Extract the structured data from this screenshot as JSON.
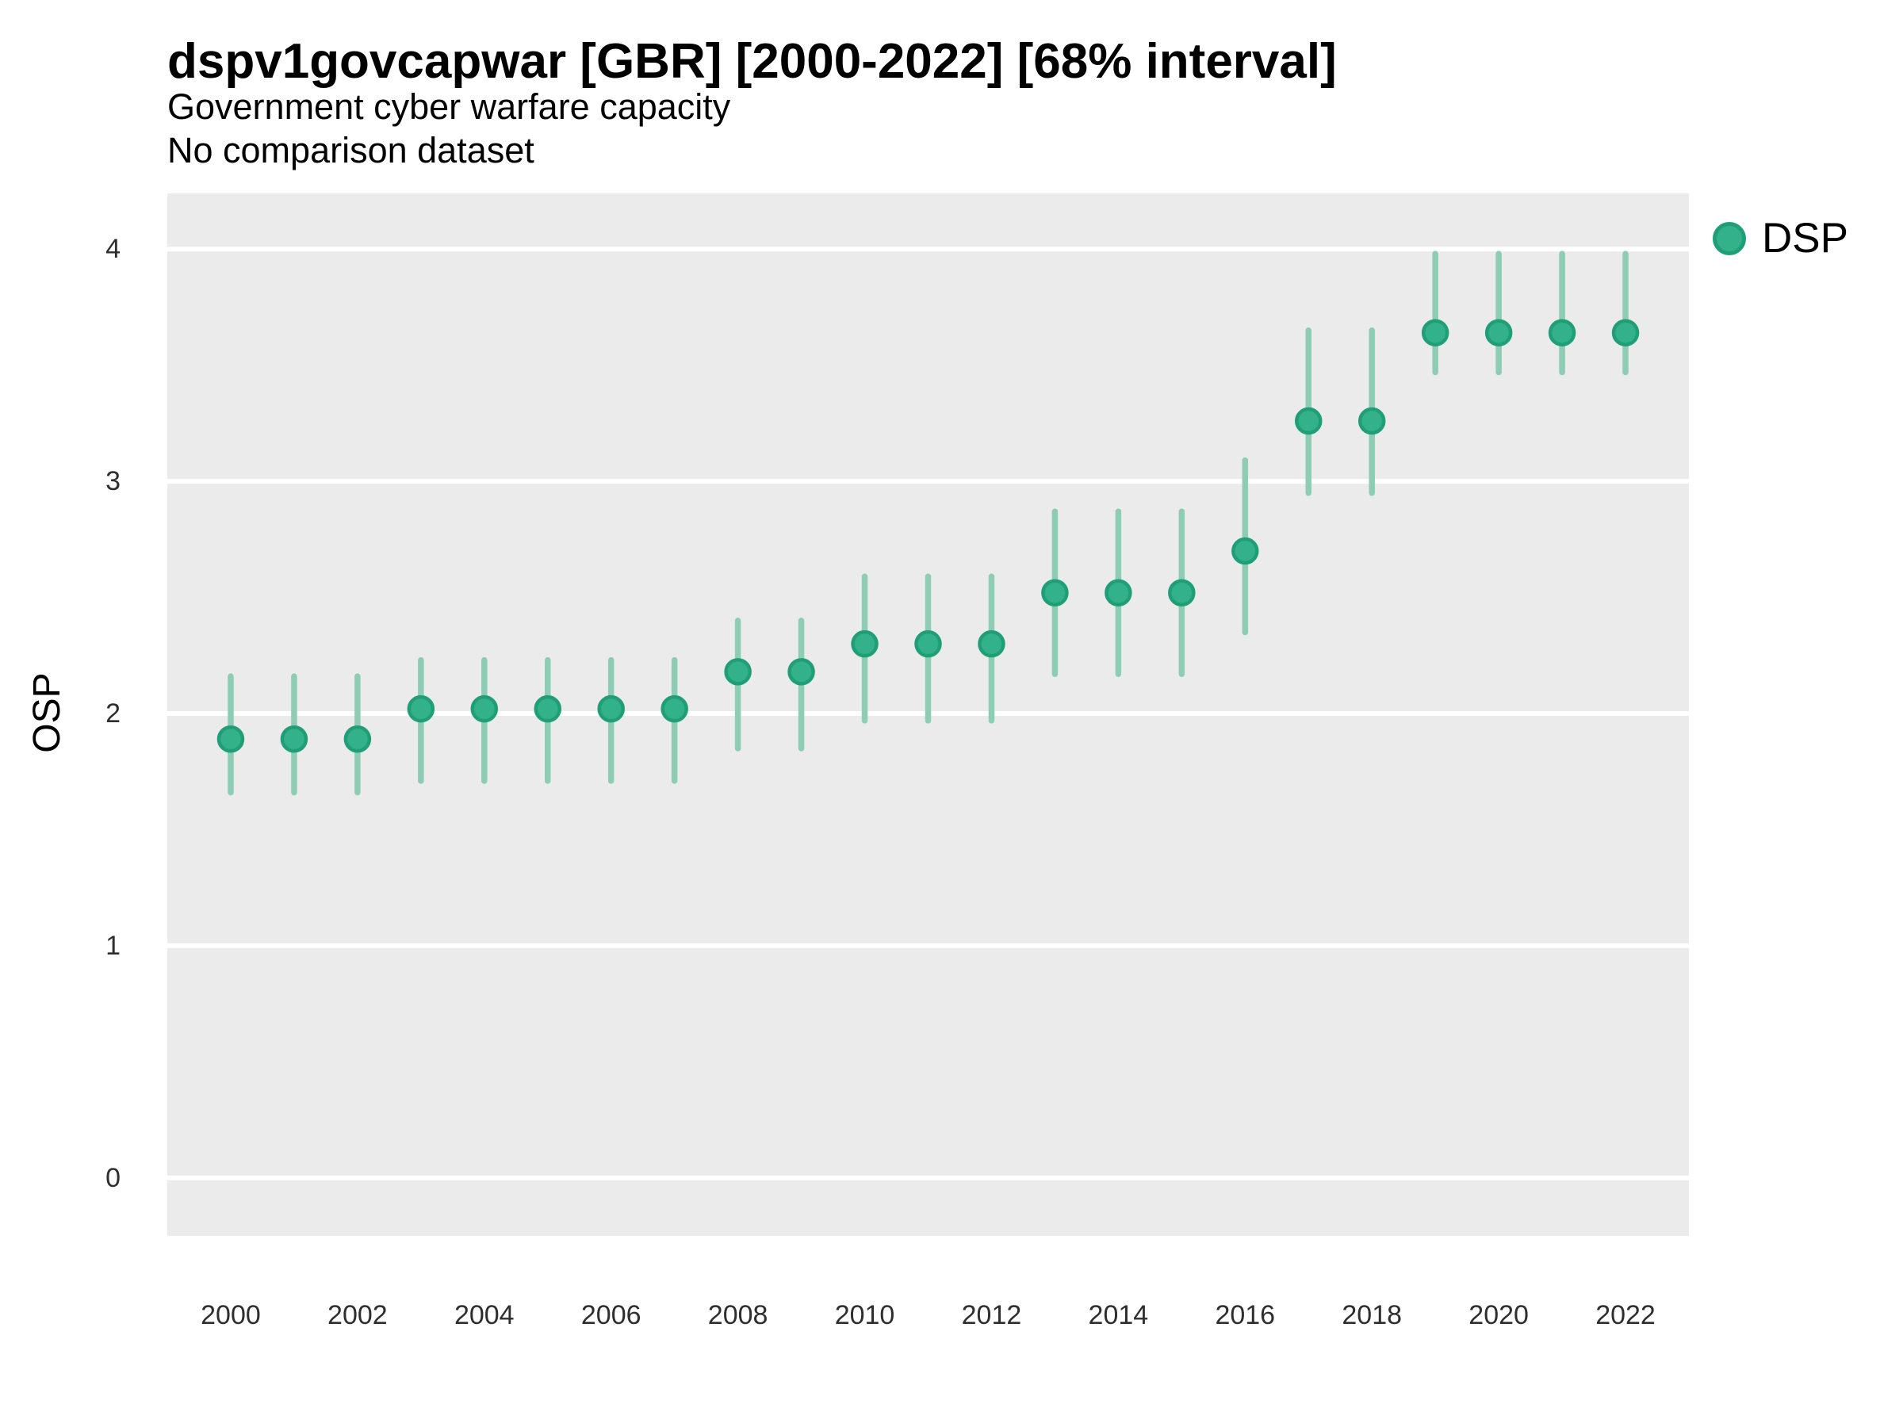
{
  "header": {
    "title": "dspv1govcapwar [GBR] [2000-2022] [68% interval]",
    "subtitle": "Government cyber warfare capacity",
    "subtitle2": "No comparison dataset"
  },
  "legend": {
    "label": "DSP"
  },
  "y_axis": {
    "label": "OSP",
    "ticks": [
      0,
      1,
      2,
      3,
      4
    ]
  },
  "x_axis": {
    "ticks": [
      2000,
      2002,
      2004,
      2006,
      2008,
      2010,
      2012,
      2014,
      2016,
      2018,
      2020,
      2022
    ]
  },
  "colors": {
    "panel_bg": "#EBEBEB",
    "gridline": "#FFFFFF",
    "interval_bar": "#8CCDB3",
    "point_fill": "#33B189",
    "point_stroke": "#1F9E78",
    "title_text": "#000000",
    "tick_text": "#2E2E2E"
  },
  "chart_data": {
    "type": "scatter",
    "subtype": "pointrange",
    "title": "dspv1govcapwar [GBR] [2000-2022] [68% interval]",
    "subtitle": "Government cyber warfare capacity",
    "note": "No comparison dataset",
    "interval_level": "68%",
    "xlabel": "",
    "ylabel": "OSP",
    "legend_position": "right",
    "grid": "horizontal-only",
    "xlim": [
      1999,
      2023
    ],
    "ylim": [
      -0.25,
      4.24
    ],
    "x": [
      2000,
      2001,
      2002,
      2003,
      2004,
      2005,
      2006,
      2007,
      2008,
      2009,
      2010,
      2011,
      2012,
      2013,
      2014,
      2015,
      2016,
      2017,
      2018,
      2019,
      2020,
      2021,
      2022
    ],
    "series": [
      {
        "name": "DSP",
        "values": [
          1.89,
          1.89,
          1.89,
          2.02,
          2.02,
          2.02,
          2.02,
          2.02,
          2.18,
          2.18,
          2.3,
          2.3,
          2.3,
          2.52,
          2.52,
          2.52,
          2.7,
          3.26,
          3.26,
          3.64,
          3.64,
          3.64,
          3.64
        ],
        "lower": [
          1.66,
          1.66,
          1.66,
          1.71,
          1.71,
          1.71,
          1.71,
          1.71,
          1.85,
          1.85,
          1.97,
          1.97,
          1.97,
          2.17,
          2.17,
          2.17,
          2.35,
          2.95,
          2.95,
          3.47,
          3.47,
          3.47,
          3.47
        ],
        "upper": [
          2.16,
          2.16,
          2.16,
          2.23,
          2.23,
          2.23,
          2.23,
          2.23,
          2.4,
          2.4,
          2.59,
          2.59,
          2.59,
          2.87,
          2.87,
          2.87,
          3.09,
          3.65,
          3.65,
          3.98,
          3.98,
          3.98,
          3.98
        ]
      }
    ]
  }
}
